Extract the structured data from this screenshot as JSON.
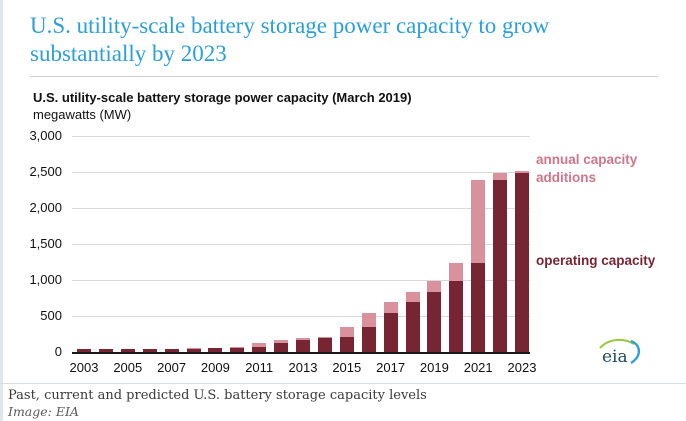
{
  "page": {
    "headline": "U.S. utility-scale battery storage power capacity to grow substantially by 2023",
    "footer_caption": "Past, current and predicted U.S. battery storage capacity levels",
    "footer_credit": "Image: EIA",
    "logo_text": "eia"
  },
  "legend": {
    "additions_label": "annual capacity additions",
    "operating_label": "operating capacity"
  },
  "colors": {
    "headline_blue": "#2b9fd9",
    "operating_bar": "#772532",
    "additions_bar": "#d9919d",
    "operating_text": "#772532",
    "additions_text": "#d0758a",
    "gridline": "#d9d9d9",
    "axis": "#1a1a1a",
    "logo_text": "#1d4a5f",
    "logo_green_arc": "#97c83d",
    "logo_blue_arc": "#2da0d9"
  },
  "chart_data": {
    "type": "bar",
    "stacked": true,
    "title": "U.S. utility-scale battery storage power capacity (March 2019)",
    "ylabel": "megawatts (MW)",
    "xlabel": "",
    "ylim": [
      0,
      3000
    ],
    "ytick_interval": 500,
    "ytick_labels": [
      "0",
      "500",
      "1,000",
      "1,500",
      "2,000",
      "2,500",
      "3,000"
    ],
    "xtick_labels": [
      "2003",
      "2005",
      "2007",
      "2009",
      "2011",
      "2013",
      "2015",
      "2017",
      "2019",
      "2021",
      "2023"
    ],
    "grid": true,
    "legend_position": "right",
    "categories": [
      2003,
      2004,
      2005,
      2006,
      2007,
      2008,
      2009,
      2010,
      2011,
      2012,
      2013,
      2014,
      2015,
      2016,
      2017,
      2018,
      2019,
      2020,
      2021,
      2022,
      2023
    ],
    "series": [
      {
        "name": "operating capacity",
        "values": [
          40,
          40,
          40,
          40,
          40,
          40,
          50,
          50,
          70,
          120,
          165,
          200,
          215,
          350,
          540,
          700,
          840,
          990,
          1240,
          2390,
          2480
        ]
      },
      {
        "name": "annual capacity additions",
        "values": [
          0,
          0,
          0,
          0,
          0,
          10,
          0,
          20,
          50,
          45,
          35,
          15,
          135,
          190,
          160,
          140,
          150,
          250,
          1150,
          90,
          40
        ]
      }
    ]
  }
}
